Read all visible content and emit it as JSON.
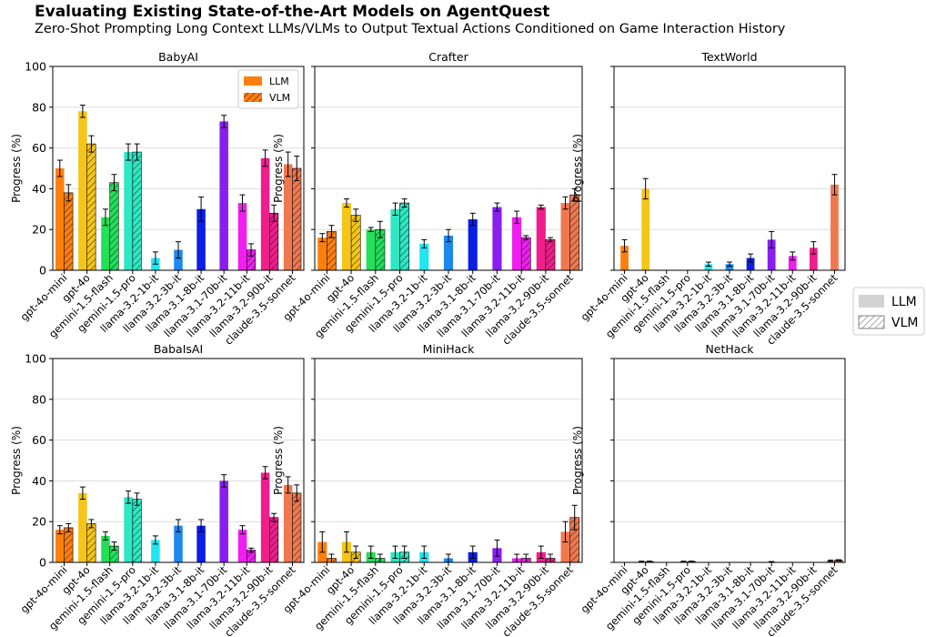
{
  "title": "Evaluating Existing State-of-the-Art Models on AgentQuest",
  "subtitle": "Zero-Shot Prompting Long Context LLMs/VLMs to Output Textual Actions Conditioned on Game Interaction History",
  "legend": {
    "llm": "LLM",
    "vlm": "VLM"
  },
  "colors": {
    "gpt-4o-mini": "#ff7f0e",
    "gpt-4o": "#f5c518",
    "gemini-1.5-flash": "#22e05a",
    "gemini-1.5-pro": "#2ee8c4",
    "llama-3.2-1b-it": "#1fe6f0",
    "llama-3.2-3b-it": "#1e88f0",
    "llama-3.1-8b-it": "#0a1ee6",
    "llama-3.1-70b-it": "#8a1ef0",
    "llama-3.2-11b-it": "#f01ef0",
    "llama-3.2-90b-it": "#f01e8c",
    "claude-3.5-sonnet": "#f07850"
  },
  "chart_data": [
    {
      "type": "bar",
      "title": "BabyAI",
      "ylabel": "Progress (%)",
      "ylim": [
        0,
        100
      ],
      "yticks": [
        "0",
        "20",
        "40",
        "60",
        "80",
        "100"
      ],
      "legend_position": "top-right",
      "categories": [
        "gpt-4o-mini",
        "gpt-4o",
        "gemini-1.5-flash",
        "gemini-1.5-pro",
        "llama-3.2-1b-it",
        "llama-3.2-3b-it",
        "llama-3.1-8b-it",
        "llama-3.1-70b-it",
        "llama-3.2-11b-it",
        "llama-3.2-90b-it",
        "claude-3.5-sonnet"
      ],
      "series": [
        {
          "name": "LLM",
          "values": [
            50,
            78,
            26,
            58,
            6,
            10,
            30,
            73,
            33,
            55,
            52
          ],
          "errors": [
            4,
            3,
            4,
            4,
            3,
            4,
            6,
            3,
            4,
            4,
            6
          ]
        },
        {
          "name": "VLM",
          "values": [
            38,
            62,
            43,
            58,
            null,
            null,
            null,
            null,
            10,
            28,
            50
          ],
          "errors": [
            4,
            4,
            4,
            4,
            null,
            null,
            null,
            null,
            3,
            4,
            6
          ]
        }
      ]
    },
    {
      "type": "bar",
      "title": "Crafter",
      "ylabel": "Progress (%)",
      "ylim": [
        0,
        100
      ],
      "yticks": [
        "",
        "",
        "",
        "",
        "",
        ""
      ],
      "categories": [
        "gpt-4o-mini",
        "gpt-4o",
        "gemini-1.5-flash",
        "gemini-1.5-pro",
        "llama-3.2-1b-it",
        "llama-3.2-3b-it",
        "llama-3.1-8b-it",
        "llama-3.1-70b-it",
        "llama-3.2-11b-it",
        "llama-3.2-90b-it",
        "claude-3.5-sonnet"
      ],
      "series": [
        {
          "name": "LLM",
          "values": [
            16,
            33,
            20,
            30,
            13,
            17,
            25,
            31,
            26,
            31,
            33
          ],
          "errors": [
            2,
            2,
            1,
            3,
            2,
            3,
            3,
            2,
            3,
            1,
            3
          ]
        },
        {
          "name": "VLM",
          "values": [
            19,
            27,
            20,
            33,
            null,
            null,
            null,
            null,
            16,
            15,
            37
          ],
          "errors": [
            3,
            3,
            4,
            2,
            null,
            null,
            null,
            null,
            1,
            1,
            3
          ]
        }
      ]
    },
    {
      "type": "bar",
      "title": "TextWorld",
      "ylabel": "Progress (%)",
      "ylim": [
        0,
        100
      ],
      "yticks": [
        "",
        "",
        "",
        "",
        "",
        ""
      ],
      "categories": [
        "gpt-4o-mini",
        "gpt-4o",
        "gemini-1.5-flash",
        "gemini-1.5-pro",
        "llama-3.2-1b-it",
        "llama-3.2-3b-it",
        "llama-3.1-8b-it",
        "llama-3.1-70b-it",
        "llama-3.2-11b-it",
        "llama-3.2-90b-it",
        "claude-3.5-sonnet"
      ],
      "series": [
        {
          "name": "LLM",
          "values": [
            12,
            40,
            0,
            0,
            3,
            3,
            6,
            15,
            7,
            11,
            42
          ],
          "errors": [
            3,
            5,
            0,
            0,
            1,
            1,
            2,
            4,
            2,
            3,
            5
          ]
        }
      ]
    },
    {
      "type": "bar",
      "title": "BabaIsAI",
      "ylabel": "Progress (%)",
      "ylim": [
        0,
        100
      ],
      "yticks": [
        "0",
        "20",
        "40",
        "60",
        "80",
        "100"
      ],
      "categories": [
        "gpt-4o-mini",
        "gpt-4o",
        "gemini-1.5-flash",
        "gemini-1.5-pro",
        "llama-3.2-1b-it",
        "llama-3.2-3b-it",
        "llama-3.1-8b-it",
        "llama-3.1-70b-it",
        "llama-3.2-11b-it",
        "llama-3.2-90b-it",
        "claude-3.5-sonnet"
      ],
      "series": [
        {
          "name": "LLM",
          "values": [
            16,
            34,
            13,
            32,
            11,
            18,
            18,
            40,
            16,
            44,
            38
          ],
          "errors": [
            2,
            3,
            2,
            3,
            2,
            3,
            3,
            3,
            2,
            3,
            4
          ]
        },
        {
          "name": "VLM",
          "values": [
            17,
            19,
            8,
            31,
            null,
            null,
            null,
            null,
            6,
            22,
            34
          ],
          "errors": [
            2,
            2,
            2,
            3,
            null,
            null,
            null,
            null,
            1,
            2,
            4
          ]
        }
      ]
    },
    {
      "type": "bar",
      "title": "MiniHack",
      "ylabel": "Progress (%)",
      "ylim": [
        0,
        100
      ],
      "yticks": [
        "",
        "",
        "",
        "",
        "",
        ""
      ],
      "categories": [
        "gpt-4o-mini",
        "gpt-4o",
        "gemini-1.5-flash",
        "gemini-1.5-pro",
        "llama-3.2-1b-it",
        "llama-3.2-3b-it",
        "llama-3.1-8b-it",
        "llama-3.1-70b-it",
        "llama-3.2-11b-it",
        "llama-3.2-90b-it",
        "claude-3.5-sonnet"
      ],
      "series": [
        {
          "name": "LLM",
          "values": [
            10,
            10,
            5,
            5,
            5,
            2,
            5,
            7,
            2,
            5,
            15
          ],
          "errors": [
            5,
            5,
            3,
            3,
            3,
            2,
            3,
            4,
            2,
            3,
            5
          ]
        },
        {
          "name": "VLM",
          "values": [
            2,
            5,
            2,
            5,
            null,
            null,
            null,
            null,
            2,
            2,
            22
          ],
          "errors": [
            2,
            3,
            2,
            3,
            null,
            null,
            null,
            null,
            2,
            2,
            6
          ]
        }
      ]
    },
    {
      "type": "bar",
      "title": "NetHack",
      "ylabel": "Progress (%)",
      "ylim": [
        0,
        100
      ],
      "yticks": [
        "",
        "",
        "",
        "",
        "",
        ""
      ],
      "categories": [
        "gpt-4o-mini",
        "gpt-4o",
        "gemini-1.5-flash",
        "gemini-1.5-pro",
        "llama-3.2-1b-it",
        "llama-3.2-3b-it",
        "llama-3.1-8b-it",
        "llama-3.1-70b-it",
        "llama-3.2-11b-it",
        "llama-3.2-90b-it",
        "claude-3.5-sonnet"
      ],
      "series": [
        {
          "name": "LLM",
          "values": [
            0,
            0.4,
            0,
            0.4,
            0,
            0,
            0,
            0.3,
            0,
            0,
            0.8
          ],
          "errors": [
            0,
            0.2,
            0,
            0.2,
            0,
            0,
            0,
            0.1,
            0,
            0,
            0.3
          ]
        },
        {
          "name": "VLM",
          "values": [
            null,
            0.4,
            null,
            0.4,
            null,
            null,
            null,
            null,
            null,
            null,
            1.0
          ],
          "errors": [
            null,
            0.2,
            null,
            0.2,
            null,
            null,
            null,
            null,
            null,
            null,
            0.3
          ]
        }
      ]
    }
  ]
}
